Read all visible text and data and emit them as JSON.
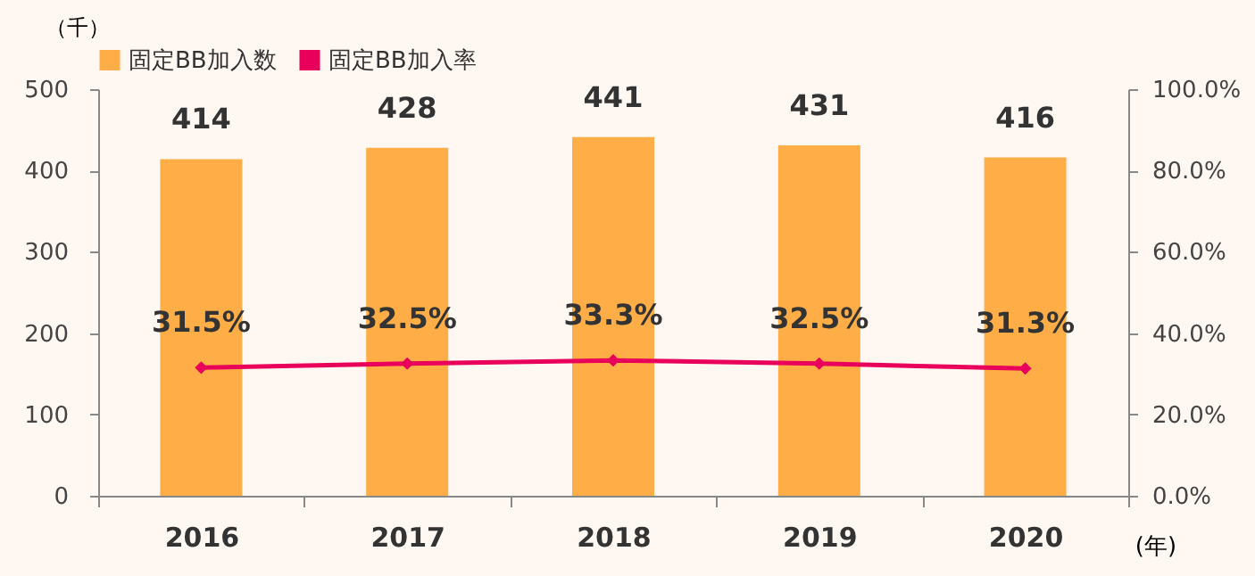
{
  "chart_data": {
    "type": "bar",
    "categories": [
      "2016",
      "2017",
      "2018",
      "2019",
      "2020"
    ],
    "xlabel": "(年)",
    "ylabel": "（千）",
    "ylim": [
      0,
      500
    ],
    "yticks": [
      0,
      100,
      200,
      300,
      400,
      500
    ],
    "y2lim": [
      0,
      100
    ],
    "y2ticks": [
      {
        "value": 0,
        "label": "0.0%"
      },
      {
        "value": 20,
        "label": "20.0%"
      },
      {
        "value": 40,
        "label": "40.0%"
      },
      {
        "value": 60,
        "label": "60.0%"
      },
      {
        "value": 80,
        "label": "80.0%"
      },
      {
        "value": 100,
        "label": "100.0%"
      }
    ],
    "legend": "top",
    "series": [
      {
        "name": "固定BB加入数",
        "color": "#ffae47",
        "values": [
          414,
          428,
          441,
          431,
          416
        ],
        "value_labels": [
          "414",
          "428",
          "441",
          "431",
          "416"
        ]
      },
      {
        "name": "固定BB加入率",
        "type": "line",
        "axis": "y2",
        "marker": "diamond",
        "color": "#e8005a",
        "values": [
          31.5,
          32.5,
          33.3,
          32.5,
          31.3
        ],
        "value_labels": [
          "31.5%",
          "32.5%",
          "33.3%",
          "32.5%",
          "31.3%"
        ]
      }
    ]
  }
}
